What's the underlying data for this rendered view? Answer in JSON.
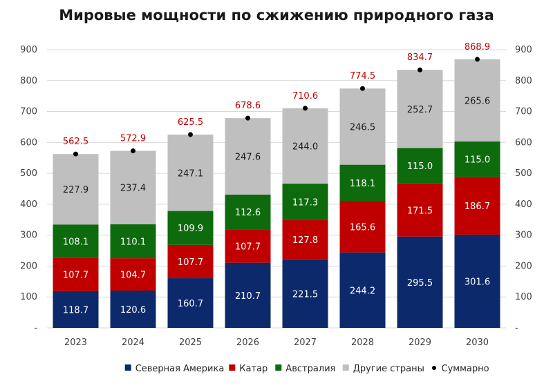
{
  "chart_data": {
    "type": "bar",
    "stacked": true,
    "title": "Мировые мощности по сжижению природного газа",
    "categories": [
      "2023",
      "2024",
      "2025",
      "2026",
      "2027",
      "2028",
      "2029",
      "2030"
    ],
    "series": [
      {
        "name": "Северная Америка",
        "color": "#0c2a6b",
        "label_color": "#ffffff",
        "values": [
          118.7,
          120.6,
          160.7,
          210.7,
          221.5,
          244.2,
          295.5,
          301.6
        ]
      },
      {
        "name": "Катар",
        "color": "#c00000",
        "label_color": "#ffffff",
        "values": [
          107.7,
          104.7,
          107.7,
          107.7,
          127.8,
          165.6,
          171.5,
          186.7
        ]
      },
      {
        "name": "Австралия",
        "color": "#0d6b0d",
        "label_color": "#ffffff",
        "values": [
          108.1,
          110.1,
          109.9,
          112.6,
          117.3,
          118.1,
          115.0,
          115.0
        ]
      },
      {
        "name": "Другие страны",
        "color": "#bfbfbf",
        "label_color": "#1a1a1a",
        "values": [
          227.9,
          237.4,
          247.1,
          247.6,
          244.0,
          246.5,
          252.7,
          265.6
        ]
      }
    ],
    "totals": {
      "name": "Суммарно",
      "color": "#000000",
      "label_color": "#c00000",
      "labels": [
        "562.5",
        "572.9",
        "625.5",
        "678.6",
        "710.6",
        "774.5",
        "834.7",
        "868.9"
      ],
      "values": [
        562.5,
        572.9,
        625.5,
        678.6,
        710.6,
        774.5,
        834.7,
        868.9
      ]
    },
    "segment_labels": [
      [
        "118.7",
        "120.6",
        "160.7",
        "210.7",
        "221.5",
        "244.2",
        "295.5",
        "301.6"
      ],
      [
        "107.7",
        "104.7",
        "107.7",
        "107.7",
        "127.8",
        "165.6",
        "171.5",
        "186.7"
      ],
      [
        "108.1",
        "110.1",
        "109.9",
        "112.6",
        "117.3",
        "118.1",
        "115.0",
        "115.0"
      ],
      [
        "227.9",
        "237.4",
        "247.1",
        "247.6",
        "244.0",
        "246.5",
        "252.7",
        "265.6"
      ]
    ],
    "ylim": [
      0,
      900
    ],
    "yticks": [
      "-",
      "100",
      "200",
      "300",
      "400",
      "500",
      "600",
      "700",
      "800",
      "900"
    ],
    "secondary_yaxis": true,
    "grid": true,
    "legend_position": "bottom"
  }
}
